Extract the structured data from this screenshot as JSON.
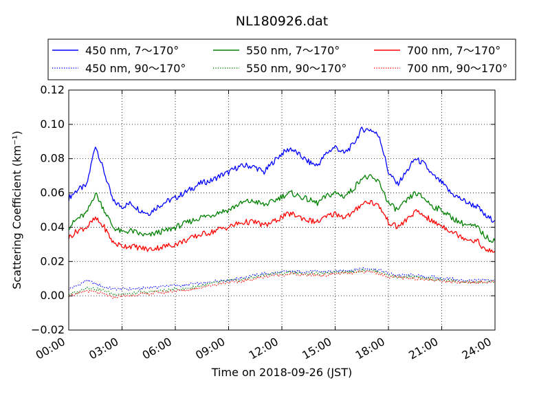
{
  "chart_data": {
    "type": "line",
    "title": "NL180926.dat",
    "xlabel": "Time on 2018-09-26 (JST)",
    "ylabel": "Scattering Coefficient (km⁻¹)",
    "x_unit": "hours since 00:00",
    "xlim": [
      0,
      24
    ],
    "ylim": [
      -0.02,
      0.12
    ],
    "xticks": [
      0,
      3,
      6,
      9,
      12,
      15,
      18,
      21,
      24
    ],
    "xtick_labels": [
      "00:00",
      "03:00",
      "06:00",
      "09:00",
      "12:00",
      "15:00",
      "18:00",
      "21:00",
      "24:00"
    ],
    "yticks": [
      -0.02,
      0.0,
      0.02,
      0.04,
      0.06,
      0.08,
      0.1,
      0.12
    ],
    "ytick_labels": [
      "−0.02",
      "0.00",
      "0.02",
      "0.04",
      "0.06",
      "0.08",
      "0.10",
      "0.12"
    ],
    "grid": true,
    "legend_position": "top",
    "x": [
      0,
      0.5,
      1,
      1.5,
      2,
      2.5,
      3,
      3.5,
      4,
      4.5,
      5,
      5.5,
      6,
      6.5,
      7,
      7.5,
      8,
      8.5,
      9,
      9.5,
      10,
      10.5,
      11,
      11.5,
      12,
      12.5,
      13,
      13.5,
      14,
      14.5,
      15,
      15.5,
      16,
      16.5,
      17,
      17.5,
      18,
      18.5,
      19,
      19.5,
      20,
      20.5,
      21,
      21.5,
      22,
      22.5,
      23,
      23.5,
      24
    ],
    "series": [
      {
        "name": "450 nm, 7～170°",
        "color": "#0000ff",
        "style": "solid",
        "values": [
          0.057,
          0.062,
          0.064,
          0.088,
          0.072,
          0.055,
          0.052,
          0.054,
          0.05,
          0.048,
          0.052,
          0.055,
          0.057,
          0.06,
          0.063,
          0.066,
          0.067,
          0.07,
          0.072,
          0.075,
          0.076,
          0.075,
          0.072,
          0.078,
          0.083,
          0.086,
          0.082,
          0.078,
          0.076,
          0.083,
          0.087,
          0.083,
          0.088,
          0.097,
          0.097,
          0.093,
          0.072,
          0.065,
          0.072,
          0.08,
          0.077,
          0.07,
          0.066,
          0.06,
          0.057,
          0.054,
          0.052,
          0.046,
          0.044
        ]
      },
      {
        "name": "450 nm, 90～170°",
        "color": "#0000ff",
        "style": "dotted",
        "values": [
          0.004,
          0.006,
          0.009,
          0.007,
          0.005,
          0.004,
          0.004,
          0.004,
          0.004,
          0.005,
          0.005,
          0.006,
          0.006,
          0.006,
          0.007,
          0.007,
          0.008,
          0.009,
          0.009,
          0.01,
          0.011,
          0.012,
          0.013,
          0.013,
          0.014,
          0.014,
          0.014,
          0.014,
          0.014,
          0.014,
          0.014,
          0.015,
          0.015,
          0.016,
          0.016,
          0.015,
          0.013,
          0.012,
          0.012,
          0.012,
          0.011,
          0.011,
          0.01,
          0.01,
          0.009,
          0.009,
          0.009,
          0.009,
          0.009
        ]
      },
      {
        "name": "550 nm, 7～170°",
        "color": "#008000",
        "style": "solid",
        "values": [
          0.04,
          0.045,
          0.048,
          0.06,
          0.05,
          0.04,
          0.037,
          0.038,
          0.036,
          0.035,
          0.037,
          0.038,
          0.04,
          0.042,
          0.044,
          0.046,
          0.047,
          0.049,
          0.05,
          0.053,
          0.055,
          0.055,
          0.053,
          0.055,
          0.058,
          0.06,
          0.058,
          0.056,
          0.054,
          0.058,
          0.06,
          0.058,
          0.062,
          0.069,
          0.069,
          0.066,
          0.054,
          0.05,
          0.055,
          0.06,
          0.057,
          0.052,
          0.05,
          0.046,
          0.043,
          0.041,
          0.04,
          0.034,
          0.032
        ]
      },
      {
        "name": "550 nm, 90～170°",
        "color": "#008000",
        "style": "dotted",
        "values": [
          0.001,
          0.002,
          0.005,
          0.004,
          0.003,
          0.001,
          0.001,
          0.001,
          0.002,
          0.002,
          0.003,
          0.003,
          0.004,
          0.004,
          0.005,
          0.006,
          0.007,
          0.008,
          0.009,
          0.009,
          0.01,
          0.011,
          0.012,
          0.013,
          0.013,
          0.014,
          0.013,
          0.013,
          0.013,
          0.013,
          0.014,
          0.014,
          0.014,
          0.015,
          0.015,
          0.014,
          0.012,
          0.011,
          0.011,
          0.011,
          0.01,
          0.01,
          0.009,
          0.009,
          0.008,
          0.008,
          0.008,
          0.008,
          0.008
        ]
      },
      {
        "name": "700 nm, 7～170°",
        "color": "#ff0000",
        "style": "solid",
        "values": [
          0.034,
          0.038,
          0.04,
          0.045,
          0.04,
          0.031,
          0.029,
          0.029,
          0.028,
          0.027,
          0.028,
          0.029,
          0.03,
          0.032,
          0.034,
          0.036,
          0.037,
          0.039,
          0.04,
          0.042,
          0.043,
          0.043,
          0.041,
          0.043,
          0.046,
          0.048,
          0.046,
          0.044,
          0.043,
          0.046,
          0.048,
          0.046,
          0.048,
          0.054,
          0.055,
          0.052,
          0.043,
          0.04,
          0.044,
          0.049,
          0.047,
          0.043,
          0.041,
          0.038,
          0.035,
          0.033,
          0.032,
          0.026,
          0.026
        ]
      },
      {
        "name": "700 nm, 90～170°",
        "color": "#ff0000",
        "style": "dotted",
        "values": [
          0.0,
          0.001,
          0.003,
          0.002,
          0.001,
          -0.001,
          0.0,
          0.0,
          0.001,
          0.001,
          0.002,
          0.002,
          0.003,
          0.003,
          0.004,
          0.005,
          0.006,
          0.007,
          0.008,
          0.008,
          0.009,
          0.01,
          0.011,
          0.012,
          0.012,
          0.013,
          0.012,
          0.012,
          0.012,
          0.012,
          0.013,
          0.013,
          0.013,
          0.014,
          0.014,
          0.013,
          0.011,
          0.011,
          0.01,
          0.01,
          0.01,
          0.009,
          0.009,
          0.008,
          0.008,
          0.008,
          0.008,
          0.008,
          0.008
        ]
      }
    ]
  }
}
